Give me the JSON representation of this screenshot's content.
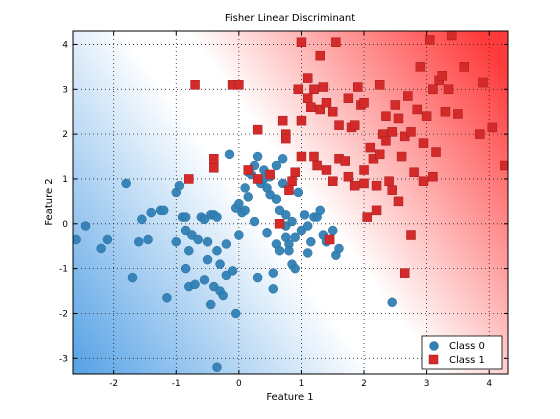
{
  "chart_data": {
    "type": "scatter",
    "title": "Fisher Linear Discriminant",
    "xlabel": "Feature 1",
    "ylabel": "Feature 2",
    "xlim": [
      -2.65,
      4.3
    ],
    "ylim": [
      -3.35,
      4.3
    ],
    "xticks": [
      -2,
      -1,
      0,
      1,
      2,
      3,
      4
    ],
    "yticks": [
      -3,
      -2,
      -1,
      0,
      1,
      2,
      3,
      4
    ],
    "grid": true,
    "grid_style": "dotted",
    "legend_position": "bottom-right",
    "background": "diverging gradient, blue (Class 0 side) to white to red (Class 1 side) across the discriminant boundary",
    "colors": {
      "class0": "#2f7fb5",
      "class1": "#d42a2a",
      "bg_blue": "#5aa4e6",
      "bg_red": "#ff3a3a"
    },
    "series": [
      {
        "name": "Class 0",
        "marker": "circle",
        "color": "#2f7fb5",
        "points": [
          [
            -2.6,
            -0.35
          ],
          [
            -2.45,
            -0.05
          ],
          [
            -2.2,
            -0.55
          ],
          [
            -2.1,
            -0.35
          ],
          [
            -1.8,
            0.9
          ],
          [
            -1.7,
            -1.2
          ],
          [
            -1.6,
            -0.4
          ],
          [
            -1.55,
            0.1
          ],
          [
            -1.45,
            -0.35
          ],
          [
            -1.4,
            0.25
          ],
          [
            -1.25,
            0.3
          ],
          [
            -1.2,
            0.3
          ],
          [
            -1.15,
            -1.65
          ],
          [
            -1.0,
            0.7
          ],
          [
            -1.0,
            -0.4
          ],
          [
            -0.95,
            0.85
          ],
          [
            -0.9,
            0.15
          ],
          [
            -0.85,
            0.15
          ],
          [
            -0.85,
            -0.15
          ],
          [
            -0.85,
            -1.0
          ],
          [
            -0.8,
            -0.6
          ],
          [
            -0.8,
            -1.4
          ],
          [
            -0.75,
            -0.25
          ],
          [
            -0.7,
            -1.35
          ],
          [
            -0.65,
            -0.35
          ],
          [
            -0.6,
            0.15
          ],
          [
            -0.55,
            0.1
          ],
          [
            -0.55,
            -1.25
          ],
          [
            -0.5,
            -0.4
          ],
          [
            -0.5,
            -0.8
          ],
          [
            -0.45,
            0.2
          ],
          [
            -0.45,
            -1.8
          ],
          [
            -0.4,
            0.2
          ],
          [
            -0.4,
            -1.4
          ],
          [
            -0.35,
            0.15
          ],
          [
            -0.35,
            -0.6
          ],
          [
            -0.3,
            -0.9
          ],
          [
            -0.3,
            -1.5
          ],
          [
            -0.25,
            -1.6
          ],
          [
            -0.2,
            -1.15
          ],
          [
            -0.2,
            -0.45
          ],
          [
            -0.15,
            1.55
          ],
          [
            -0.1,
            -1.05
          ],
          [
            -0.05,
            0.35
          ],
          [
            0.0,
            0.45
          ],
          [
            0.0,
            -0.25
          ],
          [
            -0.05,
            -2.0
          ],
          [
            0.05,
            0.25
          ],
          [
            0.1,
            0.8
          ],
          [
            0.1,
            0.3
          ],
          [
            0.15,
            1.15
          ],
          [
            0.15,
            0.6
          ],
          [
            0.2,
            1.1
          ],
          [
            0.25,
            0.05
          ],
          [
            0.25,
            1.3
          ],
          [
            0.3,
            -1.2
          ],
          [
            0.3,
            1.5
          ],
          [
            0.35,
            0.9
          ],
          [
            0.4,
            1.2
          ],
          [
            0.4,
            1.0
          ],
          [
            0.45,
            0.8
          ],
          [
            0.45,
            -0.2
          ],
          [
            0.5,
            1.05
          ],
          [
            0.5,
            0.65
          ],
          [
            0.55,
            -1.1
          ],
          [
            0.55,
            -1.45
          ],
          [
            0.6,
            1.3
          ],
          [
            0.6,
            0.55
          ],
          [
            0.6,
            -0.45
          ],
          [
            0.65,
            0.3
          ],
          [
            0.65,
            -0.6
          ],
          [
            0.7,
            1.45
          ],
          [
            0.7,
            0.9
          ],
          [
            0.75,
            0.2
          ],
          [
            0.75,
            -0.05
          ],
          [
            0.75,
            -0.3
          ],
          [
            0.8,
            -0.45
          ],
          [
            0.8,
            -0.6
          ],
          [
            0.85,
            0.05
          ],
          [
            0.85,
            -0.9
          ],
          [
            0.9,
            -0.3
          ],
          [
            0.9,
            -1.0
          ],
          [
            1.0,
            -0.15
          ],
          [
            1.05,
            0.2
          ],
          [
            1.1,
            -0.05
          ],
          [
            1.15,
            -0.4
          ],
          [
            1.2,
            0.15
          ],
          [
            1.25,
            0.15
          ],
          [
            1.3,
            0.3
          ],
          [
            1.35,
            -0.25
          ],
          [
            1.4,
            -0.4
          ],
          [
            1.5,
            -0.15
          ],
          [
            1.55,
            -0.7
          ],
          [
            1.6,
            -0.55
          ],
          [
            2.45,
            -1.75
          ],
          [
            -0.35,
            -3.2
          ],
          [
            1.1,
            -0.65
          ],
          [
            0.95,
            0.7
          ]
        ]
      },
      {
        "name": "Class 1",
        "marker": "square",
        "color": "#d42a2a",
        "points": [
          [
            -0.8,
            1.0
          ],
          [
            -0.7,
            3.1
          ],
          [
            -0.4,
            1.45
          ],
          [
            -0.4,
            1.25
          ],
          [
            -0.1,
            3.1
          ],
          [
            0.0,
            3.1
          ],
          [
            0.15,
            1.2
          ],
          [
            0.3,
            2.1
          ],
          [
            0.3,
            1.0
          ],
          [
            0.5,
            1.1
          ],
          [
            0.65,
            0.0
          ],
          [
            0.7,
            2.3
          ],
          [
            0.75,
            2.0
          ],
          [
            0.75,
            1.9
          ],
          [
            0.8,
            0.75
          ],
          [
            0.85,
            0.95
          ],
          [
            0.9,
            1.15
          ],
          [
            0.95,
            3.0
          ],
          [
            1.0,
            1.5
          ],
          [
            1.0,
            2.3
          ],
          [
            1.0,
            4.05
          ],
          [
            1.1,
            2.8
          ],
          [
            1.1,
            3.25
          ],
          [
            1.15,
            2.6
          ],
          [
            1.2,
            1.5
          ],
          [
            1.2,
            3.0
          ],
          [
            1.25,
            1.3
          ],
          [
            1.3,
            3.75
          ],
          [
            1.3,
            2.55
          ],
          [
            1.35,
            3.05
          ],
          [
            1.4,
            1.2
          ],
          [
            1.4,
            2.7
          ],
          [
            1.45,
            -0.35
          ],
          [
            1.5,
            0.95
          ],
          [
            1.5,
            2.5
          ],
          [
            1.55,
            4.05
          ],
          [
            1.6,
            2.2
          ],
          [
            1.6,
            1.45
          ],
          [
            1.7,
            1.4
          ],
          [
            1.75,
            2.8
          ],
          [
            1.75,
            1.05
          ],
          [
            1.8,
            2.15
          ],
          [
            1.85,
            0.85
          ],
          [
            1.85,
            2.2
          ],
          [
            1.9,
            3.05
          ],
          [
            1.95,
            2.65
          ],
          [
            2.0,
            0.9
          ],
          [
            2.0,
            1.2
          ],
          [
            2.0,
            2.7
          ],
          [
            2.05,
            0.15
          ],
          [
            2.1,
            1.7
          ],
          [
            2.15,
            1.45
          ],
          [
            2.2,
            0.85
          ],
          [
            2.25,
            1.55
          ],
          [
            2.25,
            3.1
          ],
          [
            2.3,
            2.0
          ],
          [
            2.35,
            1.85
          ],
          [
            2.35,
            2.4
          ],
          [
            2.4,
            0.95
          ],
          [
            2.45,
            2.05
          ],
          [
            2.5,
            2.65
          ],
          [
            2.55,
            2.35
          ],
          [
            2.6,
            1.5
          ],
          [
            2.65,
            -1.1
          ],
          [
            2.65,
            1.95
          ],
          [
            2.7,
            2.85
          ],
          [
            2.75,
            2.05
          ],
          [
            2.8,
            1.15
          ],
          [
            2.85,
            2.55
          ],
          [
            2.9,
            3.5
          ],
          [
            2.95,
            1.8
          ],
          [
            3.0,
            2.4
          ],
          [
            3.05,
            4.1
          ],
          [
            3.1,
            3.0
          ],
          [
            3.15,
            1.6
          ],
          [
            3.2,
            3.2
          ],
          [
            3.25,
            3.3
          ],
          [
            3.3,
            2.5
          ],
          [
            3.35,
            3.0
          ],
          [
            3.4,
            4.2
          ],
          [
            3.5,
            2.45
          ],
          [
            3.85,
            2.0
          ],
          [
            3.9,
            3.15
          ],
          [
            4.05,
            2.15
          ],
          [
            4.25,
            1.3
          ],
          [
            2.95,
            0.95
          ],
          [
            3.1,
            1.05
          ],
          [
            2.45,
            0.75
          ],
          [
            2.2,
            0.3
          ],
          [
            2.75,
            -0.25
          ],
          [
            3.6,
            3.5
          ],
          [
            2.55,
            0.5
          ]
        ]
      }
    ]
  }
}
